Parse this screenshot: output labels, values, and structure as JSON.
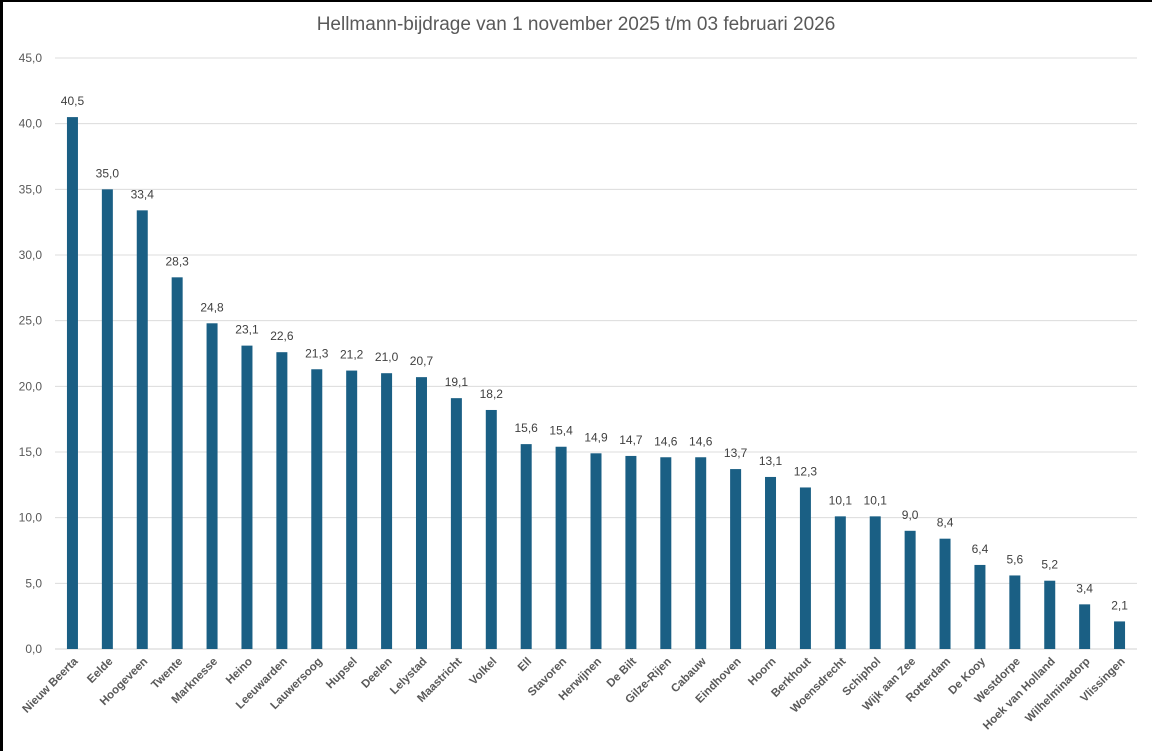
{
  "chart_data": {
    "type": "bar",
    "title": "Hellmann-bijdrage van 1 november 2025 t/m 03 februari 2026",
    "xlabel": "",
    "ylabel": "",
    "ylim": [
      0,
      45
    ],
    "yticks": [
      "0,0",
      "5,0",
      "10,0",
      "15,0",
      "20,0",
      "25,0",
      "30,0",
      "35,0",
      "40,0",
      "45,0"
    ],
    "grid": true,
    "legend": "none",
    "bar_color": "#1a5f84",
    "categories": [
      "Nieuw Beerta",
      "Eelde",
      "Hoogeveen",
      "Twente",
      "Marknesse",
      "Heino",
      "Leeuwarden",
      "Lauwersoog",
      "Hupsel",
      "Deelen",
      "Lelystad",
      "Maastricht",
      "Volkel",
      "Ell",
      "Stavoren",
      "Herwijnen",
      "De Bilt",
      "Gilze-Rijen",
      "Cabauw",
      "Eindhoven",
      "Hoorn",
      "Berkhout",
      "Woensdrecht",
      "Schiphol",
      "Wijk aan Zee",
      "Rotterdam",
      "De Kooy",
      "Westdorpe",
      "Hoek van Holland",
      "Wilhelminadorp",
      "Vlissingen"
    ],
    "values": [
      40.5,
      35.0,
      33.4,
      28.3,
      24.8,
      23.1,
      22.6,
      21.3,
      21.2,
      21.0,
      20.7,
      19.1,
      18.2,
      15.6,
      15.4,
      14.9,
      14.7,
      14.6,
      14.6,
      13.7,
      13.1,
      12.3,
      10.1,
      10.1,
      9.0,
      8.4,
      6.4,
      5.6,
      5.2,
      3.4,
      2.1
    ],
    "data_labels": [
      "40,5",
      "35,0",
      "33,4",
      "28,3",
      "24,8",
      "23,1",
      "22,6",
      "21,3",
      "21,2",
      "21,0",
      "20,7",
      "19,1",
      "18,2",
      "15,6",
      "15,4",
      "14,9",
      "14,7",
      "14,6",
      "14,6",
      "13,7",
      "13,1",
      "12,3",
      "10,1",
      "10,1",
      "9,0",
      "8,4",
      "6,4",
      "5,6",
      "5,2",
      "3,4",
      "2,1"
    ]
  }
}
